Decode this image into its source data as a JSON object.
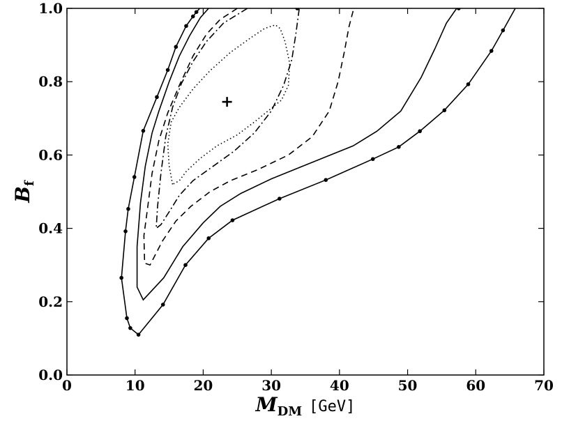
{
  "chart_data": {
    "type": "contour",
    "title": "",
    "xlabel": {
      "main": "M",
      "sub": "DM",
      "unit": "[GeV]"
    },
    "ylabel": {
      "main": "B",
      "sub": "f"
    },
    "xlim": [
      0,
      70
    ],
    "ylim": [
      0.0,
      1.0
    ],
    "xticks": [
      0,
      10,
      20,
      30,
      40,
      50,
      60,
      70
    ],
    "xtick_labels": [
      "0",
      "10",
      "20",
      "30",
      "40",
      "50",
      "60",
      "70"
    ],
    "yticks": [
      0.0,
      0.2,
      0.4,
      0.6,
      0.8,
      1.0
    ],
    "ytick_labels": [
      "0.0",
      "0.2",
      "0.4",
      "0.6",
      "0.8",
      "1.0"
    ],
    "best_fit": {
      "x": 23.5,
      "y": 0.745,
      "marker": "+"
    },
    "series": [
      {
        "name": "outer-dotted-marker",
        "style": "solid",
        "markers": true,
        "points": [
          [
            19.5,
            1.0
          ],
          [
            19.0,
            0.99
          ],
          [
            18.5,
            0.978
          ],
          [
            17.5,
            0.952
          ],
          [
            16.0,
            0.895
          ],
          [
            14.8,
            0.832
          ],
          [
            13.2,
            0.758
          ],
          [
            11.2,
            0.666
          ],
          [
            9.9,
            0.54
          ],
          [
            9.0,
            0.453
          ],
          [
            8.6,
            0.392
          ],
          [
            8.0,
            0.265
          ],
          [
            8.8,
            0.155
          ],
          [
            9.3,
            0.128
          ],
          [
            10.5,
            0.11
          ],
          [
            14.1,
            0.192
          ],
          [
            17.4,
            0.3
          ],
          [
            20.8,
            0.373
          ],
          [
            24.3,
            0.422
          ],
          [
            31.2,
            0.481
          ],
          [
            38.0,
            0.532
          ],
          [
            44.9,
            0.589
          ],
          [
            48.7,
            0.622
          ],
          [
            51.8,
            0.665
          ],
          [
            55.4,
            0.722
          ],
          [
            58.9,
            0.793
          ],
          [
            62.3,
            0.884
          ],
          [
            64.0,
            0.94
          ],
          [
            65.8,
            1.0
          ]
        ],
        "marker_points": [
          [
            19.0,
            0.99
          ],
          [
            18.5,
            0.978
          ],
          [
            17.5,
            0.952
          ],
          [
            16.0,
            0.895
          ],
          [
            14.8,
            0.832
          ],
          [
            13.2,
            0.758
          ],
          [
            11.2,
            0.666
          ],
          [
            9.9,
            0.54
          ],
          [
            9.0,
            0.453
          ],
          [
            8.6,
            0.392
          ],
          [
            8.0,
            0.265
          ],
          [
            8.8,
            0.155
          ],
          [
            9.3,
            0.128
          ],
          [
            10.5,
            0.11
          ],
          [
            14.1,
            0.192
          ],
          [
            17.4,
            0.3
          ],
          [
            20.8,
            0.373
          ],
          [
            24.3,
            0.422
          ],
          [
            31.2,
            0.481
          ],
          [
            38.0,
            0.532
          ],
          [
            44.9,
            0.589
          ],
          [
            48.7,
            0.622
          ],
          [
            51.8,
            0.665
          ],
          [
            55.4,
            0.722
          ],
          [
            58.9,
            0.793
          ],
          [
            62.3,
            0.884
          ],
          [
            64.0,
            0.94
          ],
          [
            33.8,
            1.0
          ],
          [
            57.5,
            1.0
          ]
        ]
      },
      {
        "name": "solid",
        "style": "solid",
        "markers": false,
        "points": [
          [
            20.8,
            1.0
          ],
          [
            19.6,
            0.975
          ],
          [
            18.0,
            0.925
          ],
          [
            16.5,
            0.87
          ],
          [
            15.0,
            0.8
          ],
          [
            13.5,
            0.72
          ],
          [
            12.5,
            0.66
          ],
          [
            11.5,
            0.57
          ],
          [
            10.8,
            0.47
          ],
          [
            10.3,
            0.35
          ],
          [
            10.3,
            0.24
          ],
          [
            11.2,
            0.205
          ],
          [
            14.2,
            0.265
          ],
          [
            17.0,
            0.35
          ],
          [
            20.0,
            0.415
          ],
          [
            22.5,
            0.46
          ],
          [
            25.5,
            0.495
          ],
          [
            30.0,
            0.535
          ],
          [
            36.0,
            0.58
          ],
          [
            42.0,
            0.625
          ],
          [
            45.5,
            0.665
          ],
          [
            49.0,
            0.72
          ],
          [
            52.0,
            0.812
          ],
          [
            54.0,
            0.89
          ],
          [
            55.7,
            0.96
          ],
          [
            57.2,
            1.0
          ]
        ]
      },
      {
        "name": "dashed",
        "style": "dashed",
        "markers": false,
        "points": [
          [
            25.0,
            1.0
          ],
          [
            22.5,
            0.97
          ],
          [
            20.5,
            0.93
          ],
          [
            18.5,
            0.87
          ],
          [
            16.5,
            0.79
          ],
          [
            14.8,
            0.715
          ],
          [
            13.5,
            0.64
          ],
          [
            12.5,
            0.55
          ],
          [
            11.8,
            0.45
          ],
          [
            11.3,
            0.38
          ],
          [
            11.4,
            0.305
          ],
          [
            12.2,
            0.3
          ],
          [
            14.0,
            0.365
          ],
          [
            16.0,
            0.42
          ],
          [
            18.2,
            0.46
          ],
          [
            21.0,
            0.5
          ],
          [
            24.0,
            0.53
          ],
          [
            28.0,
            0.56
          ],
          [
            32.5,
            0.6
          ],
          [
            36.0,
            0.65
          ],
          [
            38.5,
            0.72
          ],
          [
            39.8,
            0.8
          ],
          [
            40.7,
            0.88
          ],
          [
            41.4,
            0.95
          ],
          [
            42.1,
            1.0
          ]
        ]
      },
      {
        "name": "dash-dot",
        "style": "dashdot",
        "markers": false,
        "points": [
          [
            26.5,
            1.0
          ],
          [
            23.0,
            0.96
          ],
          [
            20.5,
            0.91
          ],
          [
            18.5,
            0.855
          ],
          [
            16.8,
            0.795
          ],
          [
            15.5,
            0.73
          ],
          [
            14.5,
            0.65
          ],
          [
            13.8,
            0.55
          ],
          [
            13.3,
            0.46
          ],
          [
            13.1,
            0.4
          ],
          [
            13.8,
            0.41
          ],
          [
            15.0,
            0.445
          ],
          [
            16.5,
            0.49
          ],
          [
            18.5,
            0.53
          ],
          [
            21.5,
            0.57
          ],
          [
            24.5,
            0.61
          ],
          [
            27.5,
            0.66
          ],
          [
            30.0,
            0.72
          ],
          [
            31.8,
            0.79
          ],
          [
            33.0,
            0.86
          ],
          [
            33.6,
            0.93
          ],
          [
            34.1,
            1.0
          ]
        ]
      },
      {
        "name": "dotted",
        "style": "dotted",
        "markers": false,
        "points": [
          [
            15.5,
            0.52
          ],
          [
            15.0,
            0.57
          ],
          [
            14.8,
            0.63
          ],
          [
            15.3,
            0.69
          ],
          [
            16.5,
            0.73
          ],
          [
            18.5,
            0.78
          ],
          [
            21.0,
            0.83
          ],
          [
            24.0,
            0.88
          ],
          [
            27.0,
            0.92
          ],
          [
            29.0,
            0.945
          ],
          [
            30.6,
            0.955
          ],
          [
            31.3,
            0.945
          ],
          [
            32.0,
            0.91
          ],
          [
            32.7,
            0.85
          ],
          [
            32.5,
            0.79
          ],
          [
            31.5,
            0.75
          ],
          [
            29.5,
            0.72
          ],
          [
            27.5,
            0.69
          ],
          [
            25.0,
            0.655
          ],
          [
            22.0,
            0.625
          ],
          [
            19.5,
            0.59
          ],
          [
            17.5,
            0.555
          ],
          [
            16.5,
            0.53
          ],
          [
            15.5,
            0.52
          ]
        ]
      }
    ]
  }
}
